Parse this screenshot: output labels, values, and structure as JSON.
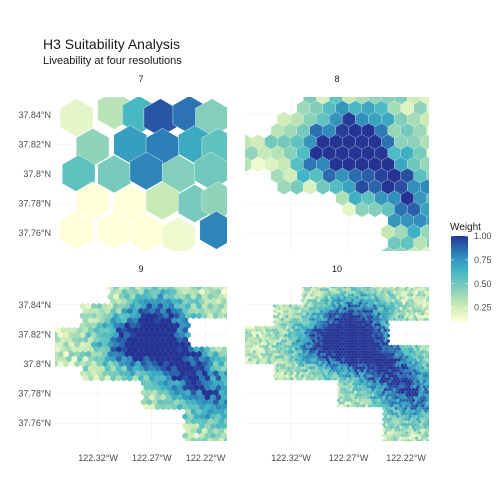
{
  "chart_data": {
    "type": "heatmap",
    "title": "H3 Suitability Analysis",
    "subtitle": "Liveability at four resolutions",
    "facets": [
      "7",
      "8",
      "9",
      "10"
    ],
    "x_ticks": [
      "122.32°W",
      "122.27°W",
      "122.22°W"
    ],
    "x_tick_values": [
      -122.32,
      -122.27,
      -122.22
    ],
    "y_ticks": [
      "37.84°N",
      "37.82°N",
      "37.8°N",
      "37.78°N",
      "37.76°N"
    ],
    "y_tick_values": [
      37.84,
      37.82,
      37.8,
      37.78,
      37.76
    ],
    "xlim": [
      -122.36,
      -122.2
    ],
    "ylim": [
      37.748,
      37.852
    ],
    "legend": {
      "title": "Weight",
      "position": "right",
      "ticks": [
        "1.00",
        "0.75",
        "0.50",
        "0.25"
      ],
      "tick_values": [
        1.0,
        0.75,
        0.5,
        0.25
      ],
      "range": [
        0.1,
        1.0
      ]
    },
    "color_scale": [
      "#ffffd9",
      "#c7e9b4",
      "#7fcdbb",
      "#41b6c4",
      "#2c7fb8",
      "#253494"
    ],
    "grid": true,
    "resolution_7_cells": [
      {
        "lon": -122.34,
        "lat": 37.838,
        "weight": 0.18
      },
      {
        "lon": -122.305,
        "lat": 37.843,
        "weight": 0.32
      },
      {
        "lon": -122.282,
        "lat": 37.84,
        "weight": 0.62
      },
      {
        "lon": -122.262,
        "lat": 37.838,
        "weight": 0.92
      },
      {
        "lon": -122.235,
        "lat": 37.84,
        "weight": 0.85
      },
      {
        "lon": -122.214,
        "lat": 37.838,
        "weight": 0.45
      },
      {
        "lon": -122.325,
        "lat": 37.818,
        "weight": 0.42
      },
      {
        "lon": -122.29,
        "lat": 37.82,
        "weight": 0.72
      },
      {
        "lon": -122.26,
        "lat": 37.818,
        "weight": 0.82
      },
      {
        "lon": -122.23,
        "lat": 37.82,
        "weight": 0.68
      },
      {
        "lon": -122.208,
        "lat": 37.818,
        "weight": 0.55
      },
      {
        "lon": -122.338,
        "lat": 37.8,
        "weight": 0.55
      },
      {
        "lon": -122.305,
        "lat": 37.8,
        "weight": 0.48
      },
      {
        "lon": -122.275,
        "lat": 37.802,
        "weight": 0.8
      },
      {
        "lon": -122.245,
        "lat": 37.8,
        "weight": 0.45
      },
      {
        "lon": -122.215,
        "lat": 37.802,
        "weight": 0.5
      },
      {
        "lon": -122.325,
        "lat": 37.782,
        "weight": 0.1
      },
      {
        "lon": -122.29,
        "lat": 37.78,
        "weight": 0.1
      },
      {
        "lon": -122.26,
        "lat": 37.782,
        "weight": 0.28
      },
      {
        "lon": -122.23,
        "lat": 37.78,
        "weight": 0.48
      },
      {
        "lon": -122.208,
        "lat": 37.782,
        "weight": 0.42
      },
      {
        "lon": -122.34,
        "lat": 37.762,
        "weight": 0.1
      },
      {
        "lon": -122.305,
        "lat": 37.762,
        "weight": 0.08
      },
      {
        "lon": -122.275,
        "lat": 37.76,
        "weight": 0.1
      },
      {
        "lon": -122.245,
        "lat": 37.758,
        "weight": 0.15
      },
      {
        "lon": -122.21,
        "lat": 37.762,
        "weight": 0.8
      }
    ]
  }
}
